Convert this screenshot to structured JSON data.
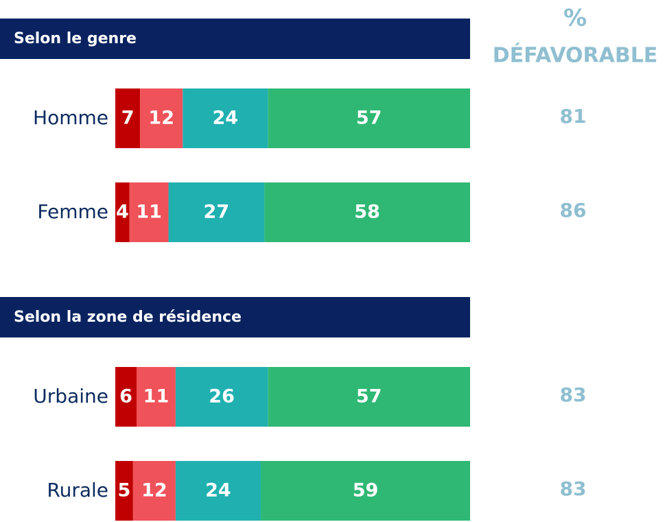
{
  "chart_data": {
    "type": "bar",
    "orientation": "horizontal",
    "stacked": true,
    "xlim": [
      0,
      100
    ],
    "column_title": [
      "%",
      "DÉFAVORABLE"
    ],
    "groups": [
      {
        "title": "Selon le genre",
        "categories": [
          "Homme",
          "Femme"
        ],
        "series": [
          {
            "color": "#c00000",
            "values": [
              7,
              4
            ]
          },
          {
            "color": "#f0525a",
            "values": [
              12,
              11
            ]
          },
          {
            "color": "#20b0b0",
            "values": [
              24,
              27
            ]
          },
          {
            "color": "#2fb874",
            "values": [
              57,
              58
            ]
          }
        ],
        "unfavorable": [
          81,
          86
        ]
      },
      {
        "title": "Selon la zone de résidence",
        "categories": [
          "Urbaine",
          "Rurale"
        ],
        "series": [
          {
            "color": "#c00000",
            "values": [
              6,
              5
            ]
          },
          {
            "color": "#f0525a",
            "values": [
              11,
              12
            ]
          },
          {
            "color": "#20b0b0",
            "values": [
              26,
              24
            ]
          },
          {
            "color": "#2fb874",
            "values": [
              57,
              59
            ]
          }
        ],
        "unfavorable": [
          83,
          83
        ]
      }
    ]
  }
}
